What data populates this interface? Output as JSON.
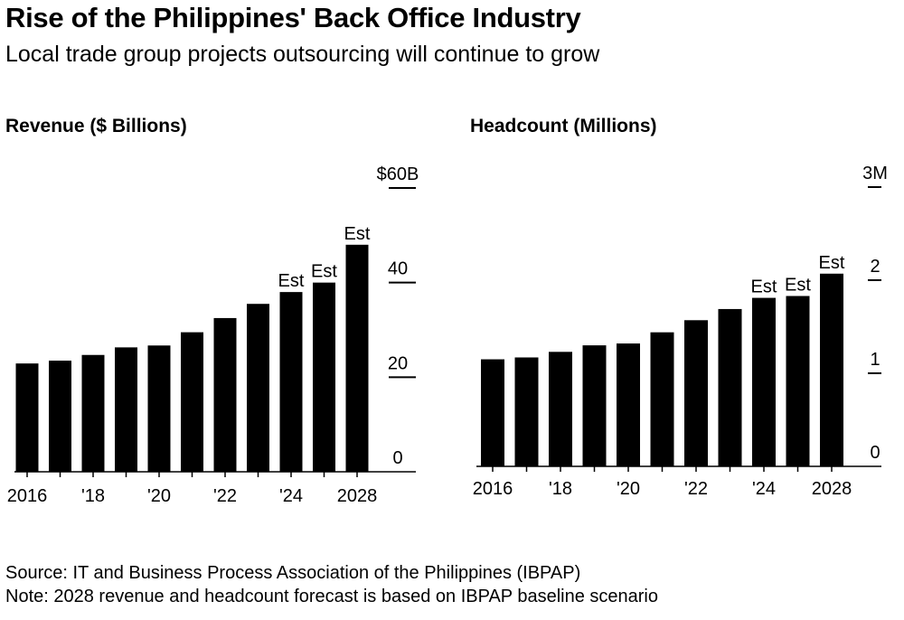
{
  "title": "Rise of the Philippines' Back Office Industry",
  "subtitle": "Local trade group projects outsourcing will continue to grow",
  "footer": {
    "source": "Source: IT and Business Process Association of the Philippines (IBPAP)",
    "note": "Note: 2028 revenue and headcount forecast is based on IBPAP baseline scenario"
  },
  "colors": {
    "bar": "#000000",
    "axis": "#000000",
    "text": "#000000"
  },
  "chart_data": [
    {
      "type": "bar",
      "title": "Revenue ($ Billions)",
      "categories": [
        "2016",
        "2017",
        "2018",
        "2019",
        "2020",
        "2021",
        "2022",
        "2023",
        "2024",
        "2025",
        "2028"
      ],
      "x_tick_labels": [
        "2016",
        "",
        "'18",
        "",
        "'20",
        "",
        "'22",
        "",
        "'24",
        "",
        "2028"
      ],
      "values": [
        22.9,
        23.5,
        24.7,
        26.3,
        26.7,
        29.5,
        32.5,
        35.5,
        38.0,
        40.0,
        48.0
      ],
      "bar_labels": [
        "",
        "",
        "",
        "",
        "",
        "",
        "",
        "",
        "Est",
        "Est",
        "Est"
      ],
      "y_ticks": [
        0,
        20,
        40,
        60
      ],
      "y_tick_labels": [
        "0",
        "20",
        "40",
        "$60B"
      ],
      "ylim": [
        0,
        60
      ],
      "y_axis_position": "right",
      "grid": false
    },
    {
      "type": "bar",
      "title": "Headcount (Millions)",
      "categories": [
        "2016",
        "2017",
        "2018",
        "2019",
        "2020",
        "2021",
        "2022",
        "2023",
        "2024",
        "2025",
        "2028"
      ],
      "x_tick_labels": [
        "2016",
        "",
        "'18",
        "",
        "'20",
        "",
        "'22",
        "",
        "'24",
        "",
        "2028"
      ],
      "values": [
        1.15,
        1.17,
        1.23,
        1.3,
        1.32,
        1.44,
        1.57,
        1.69,
        1.81,
        1.83,
        2.07
      ],
      "bar_labels": [
        "",
        "",
        "",
        "",
        "",
        "",
        "",
        "",
        "Est",
        "Est",
        "Est"
      ],
      "y_ticks": [
        0,
        1,
        2,
        3
      ],
      "y_tick_labels": [
        "0",
        "1",
        "2",
        "3M"
      ],
      "ylim": [
        0,
        3
      ],
      "y_axis_position": "right",
      "grid": false
    }
  ]
}
